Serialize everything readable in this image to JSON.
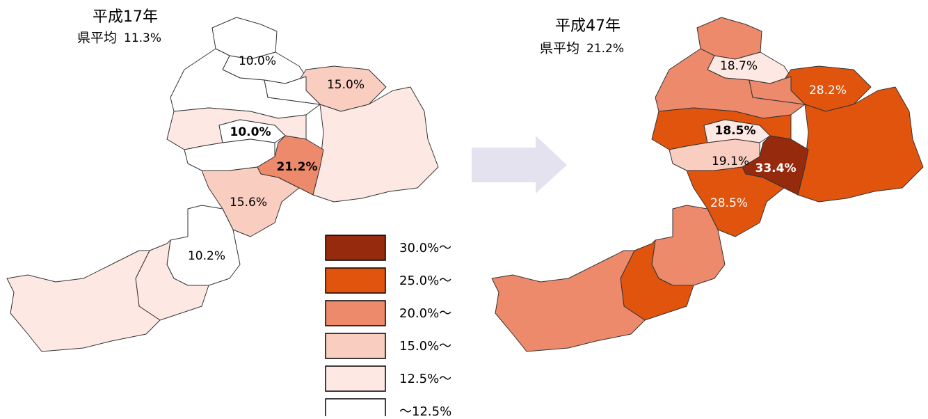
{
  "maps": [
    {
      "title": "平成17年",
      "average": {
        "label": "県平均",
        "value": "11.3%"
      },
      "labels": [
        "10.0%",
        "15.0%",
        "10.0%",
        "21.2%",
        "15.6%",
        "10.2%"
      ]
    },
    {
      "title": "平成47年",
      "average": {
        "label": "県平均",
        "value": "21.2%"
      },
      "labels": [
        "18.7%",
        "28.2%",
        "18.5%",
        "19.1%",
        "33.4%",
        "28.5%"
      ]
    }
  ],
  "legend": [
    {
      "label": "30.0%～",
      "color": "#952a0d"
    },
    {
      "label": "25.0%～",
      "color": "#e0540e"
    },
    {
      "label": "20.0%～",
      "color": "#ec8a6b"
    },
    {
      "label": "15.0%～",
      "color": "#f9cdc0"
    },
    {
      "label": "12.5%～",
      "color": "#fde8e3"
    },
    {
      "label": "～12.5%",
      "color": "#ffffff"
    }
  ]
}
